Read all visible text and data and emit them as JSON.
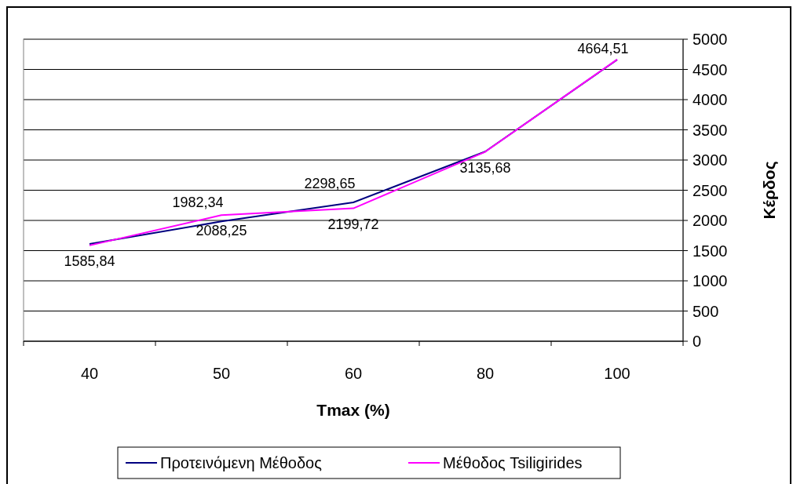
{
  "chart_data": {
    "type": "line",
    "xlabel": "Tmax (%)",
    "ylabel": "Κέρδος",
    "categories": [
      "40",
      "50",
      "60",
      "80",
      "100"
    ],
    "series": [
      {
        "name": "Προτεινόμενη Μέθοδος",
        "color": "#000080",
        "values": [
          1610,
          1982.34,
          2298.65,
          3140,
          4660
        ],
        "value_labels": [
          null,
          "1982,34",
          "2298,65",
          null,
          null
        ]
      },
      {
        "name": "Μέθοδος Tsiligirides",
        "color": "#ff00ff",
        "values": [
          1585.84,
          2088.25,
          2199.72,
          3135.68,
          4664.51
        ],
        "value_labels": [
          "1585,84",
          "2088,25",
          "2199,72",
          "3135,68",
          "4664,51"
        ]
      }
    ],
    "ylim": [
      0,
      5000
    ],
    "yticks": [
      0,
      500,
      1000,
      1500,
      2000,
      2500,
      3000,
      3500,
      4000,
      4500,
      5000
    ],
    "grid": "y",
    "legend": "bottom",
    "marker": "none",
    "line_style": "solid"
  }
}
